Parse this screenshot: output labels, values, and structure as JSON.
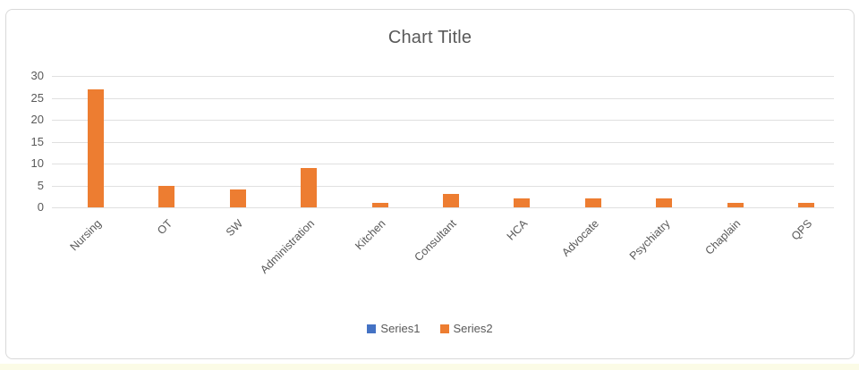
{
  "chart_data": {
    "type": "bar",
    "title": "Chart Title",
    "categories": [
      "Nursing",
      "OT",
      "SW",
      "Administration",
      "Kitchen",
      "Consultant",
      "HCA",
      "Advocate",
      "Psychiatry",
      "Chaplain",
      "QPS"
    ],
    "series": [
      {
        "name": "Series1",
        "color": "#4472C4",
        "values": [
          0,
          0,
          0,
          0,
          0,
          0,
          0,
          0,
          0,
          0,
          0
        ]
      },
      {
        "name": "Series2",
        "color": "#ED7D31",
        "values": [
          27,
          5,
          4,
          9,
          1,
          3,
          2,
          2,
          2,
          1,
          1
        ]
      }
    ],
    "xlabel": "",
    "ylabel": "",
    "ylim": [
      0,
      30
    ],
    "y_ticks": [
      0,
      5,
      10,
      15,
      20,
      25,
      30
    ],
    "grid": true,
    "legend_position": "bottom"
  },
  "colors": {
    "title_text": "#595959",
    "axis_text": "#595959",
    "gridline": "#E0E0E0",
    "chart_border": "#D9D9D9",
    "series1": "#4472C4",
    "series2": "#ED7D31",
    "worksheet_highlight": "#FBFBE6"
  }
}
